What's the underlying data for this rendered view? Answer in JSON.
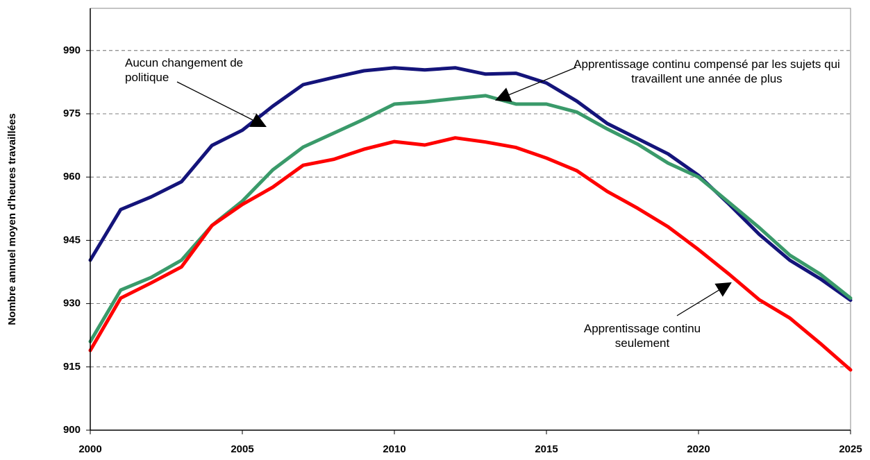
{
  "chart_data": {
    "type": "line",
    "y_label": "Nombre annuel moyen d'heures travaillées",
    "x": [
      2000,
      2001,
      2002,
      2003,
      2004,
      2005,
      2006,
      2007,
      2008,
      2009,
      2010,
      2011,
      2012,
      2013,
      2014,
      2015,
      2016,
      2017,
      2018,
      2019,
      2020,
      2021,
      2022,
      2023,
      2024,
      2025
    ],
    "series": [
      {
        "name": "Aucun changement de politique",
        "color": "#14147a",
        "values": [
          940.3,
          952.3,
          955.3,
          958.9,
          967.5,
          971.1,
          976.8,
          981.9,
          983.6,
          985.2,
          985.9,
          985.4,
          985.9,
          984.4,
          984.6,
          982.3,
          978,
          972.7,
          969.1,
          965.5,
          960.4,
          953.6,
          946.4,
          940.3,
          935.9,
          930.8
        ]
      },
      {
        "name": "Apprentissage continu compensé par les sujets qui travaillent une année de plus",
        "color": "#3a9a6a",
        "values": [
          921,
          933.2,
          936.2,
          940.3,
          948.5,
          954.3,
          961.7,
          967.1,
          970.4,
          973.7,
          977.3,
          977.8,
          978.6,
          979.3,
          977.3,
          977.3,
          975.4,
          971.4,
          967.8,
          963.3,
          960,
          954,
          948,
          941.5,
          937,
          931.3
        ]
      },
      {
        "name": "Apprentissage continu seulement",
        "color": "#ff0000",
        "values": [
          918.9,
          931.3,
          934.9,
          938.7,
          948.5,
          953.5,
          957.6,
          962.8,
          964.2,
          966.6,
          968.4,
          967.6,
          969.3,
          968.3,
          967,
          964.5,
          961.5,
          956.6,
          952.6,
          948.2,
          942.8,
          937,
          930.9,
          926.6,
          920.6,
          914.3
        ]
      }
    ],
    "xlim": [
      2000,
      2025
    ],
    "xticks": [
      2000,
      2005,
      2010,
      2015,
      2020,
      2025
    ],
    "ylim": [
      900,
      1000
    ],
    "yticks": [
      900,
      915,
      930,
      945,
      960,
      975,
      990
    ],
    "grid": true
  }
}
